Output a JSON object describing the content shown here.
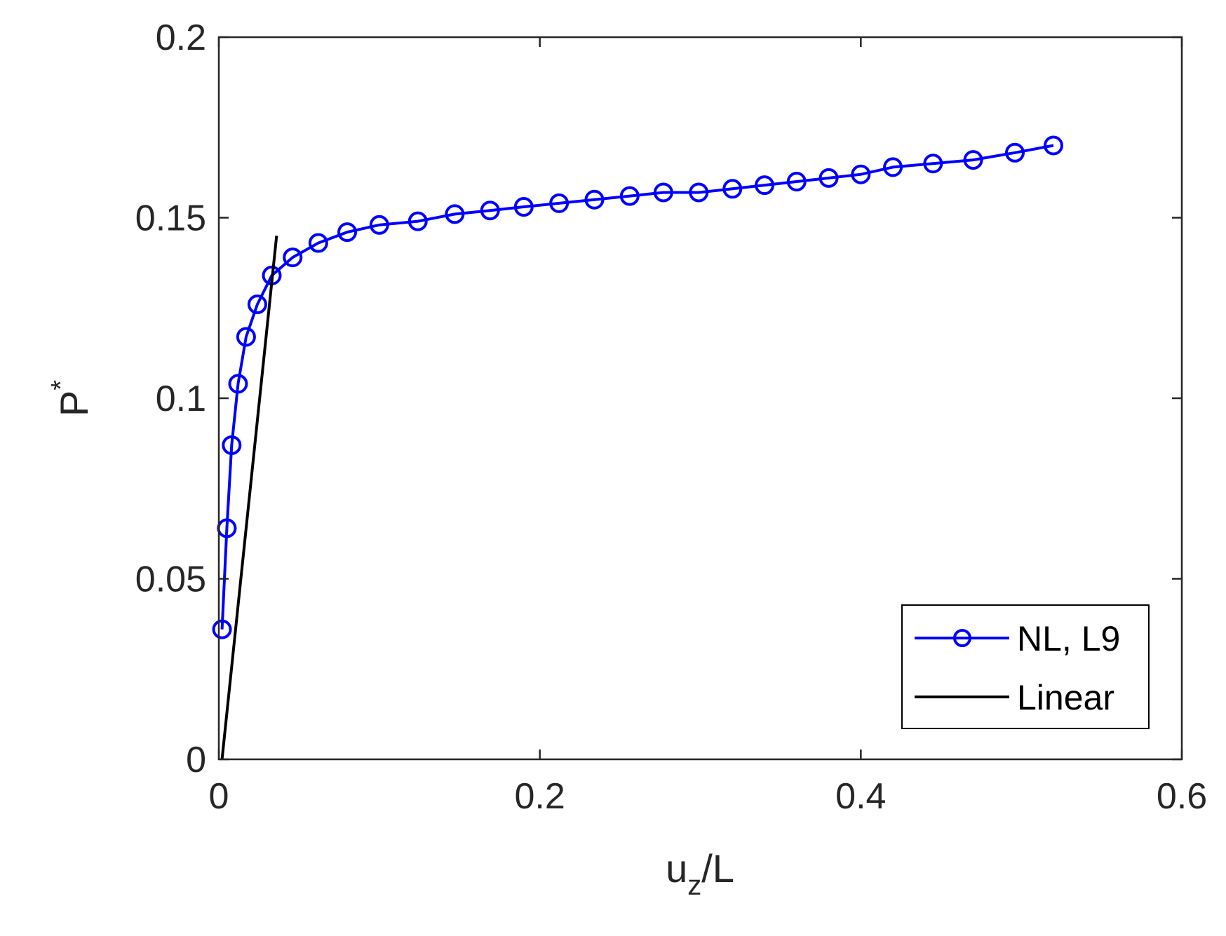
{
  "chart_data": {
    "type": "line",
    "xlabel": {
      "main": "u",
      "sub": "z",
      "suffix": "/L"
    },
    "ylabel": {
      "main": "P",
      "sup": "*"
    },
    "xlim": [
      0,
      0.6
    ],
    "ylim": [
      0,
      0.2
    ],
    "xticks": [
      0,
      0.2,
      0.4,
      0.6
    ],
    "yticks": [
      0,
      0.05,
      0.1,
      0.15,
      0.2
    ],
    "xtick_labels": [
      "0",
      "0.2",
      "0.4",
      "0.6"
    ],
    "ytick_labels": [
      "0",
      "0.05",
      "0.1",
      "0.15",
      "0.2"
    ],
    "grid": false,
    "legend_position": "bottom-right",
    "series": [
      {
        "name": "NL, L9",
        "color": "#0000ff",
        "marker": "circle",
        "x": [
          0.002,
          0.005,
          0.008,
          0.012,
          0.017,
          0.024,
          0.033,
          0.046,
          0.062,
          0.08,
          0.1,
          0.124,
          0.147,
          0.169,
          0.19,
          0.212,
          0.234,
          0.256,
          0.277,
          0.299,
          0.32,
          0.34,
          0.36,
          0.38,
          0.4,
          0.42,
          0.445,
          0.47,
          0.496,
          0.52
        ],
        "y": [
          0.036,
          0.064,
          0.087,
          0.104,
          0.117,
          0.126,
          0.134,
          0.139,
          0.143,
          0.146,
          0.148,
          0.149,
          0.151,
          0.152,
          0.153,
          0.154,
          0.155,
          0.156,
          0.157,
          0.157,
          0.158,
          0.159,
          0.16,
          0.161,
          0.162,
          0.164,
          0.165,
          0.166,
          0.168,
          0.17
        ]
      },
      {
        "name": "Linear",
        "color": "#000000",
        "marker": "none",
        "x": [
          0.002,
          0.036
        ],
        "y": [
          0.0,
          0.145
        ]
      }
    ]
  }
}
